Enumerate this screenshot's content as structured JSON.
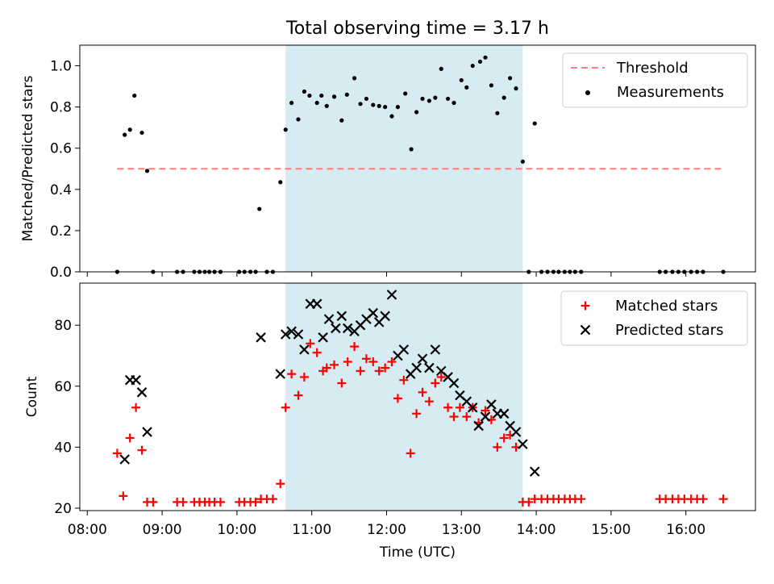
{
  "title": "Total observing time = 3.17 h",
  "colors": {
    "threshold": "#ff7f7f",
    "measurement": "#000000",
    "matched": "#ff0000",
    "predicted": "#000000",
    "shade": "#add8e6"
  },
  "chart_data": [
    {
      "type": "scatter",
      "ylabel": "Matched/Predicted stars",
      "ylim": [
        0,
        1.1
      ],
      "yticks": [
        0.0,
        0.2,
        0.4,
        0.6,
        0.8,
        1.0
      ],
      "ytick_labels": [
        "0.0",
        "0.2",
        "0.4",
        "0.6",
        "0.8",
        "1.0"
      ],
      "xlim_hours": [
        7.9,
        16.93
      ],
      "shaded_span_hours": [
        10.65,
        13.82
      ],
      "legend": {
        "position": "top-right",
        "entries": [
          "Threshold",
          "Measurements"
        ]
      },
      "threshold": {
        "name": "Threshold",
        "y": 0.5,
        "x_range_hours": [
          8.4,
          16.5
        ]
      },
      "series": [
        {
          "name": "Measurements",
          "x": [
            8.4,
            8.5,
            8.57,
            8.63,
            8.73,
            8.8,
            8.88,
            9.2,
            9.28,
            9.43,
            9.5,
            9.57,
            9.63,
            9.7,
            9.78,
            10.03,
            10.1,
            10.18,
            10.25,
            10.3,
            10.4,
            10.48,
            10.58,
            10.65,
            10.73,
            10.82,
            10.9,
            10.97,
            11.07,
            11.13,
            11.2,
            11.3,
            11.4,
            11.47,
            11.57,
            11.65,
            11.73,
            11.82,
            11.9,
            11.98,
            12.07,
            12.15,
            12.25,
            12.33,
            12.4,
            12.48,
            12.57,
            12.65,
            12.73,
            12.82,
            12.9,
            13.0,
            13.07,
            13.15,
            13.25,
            13.32,
            13.4,
            13.48,
            13.57,
            13.65,
            13.73,
            13.82,
            13.9,
            13.98,
            14.07,
            14.15,
            14.23,
            14.3,
            14.38,
            14.45,
            14.52,
            14.6,
            15.65,
            15.73,
            15.82,
            15.9,
            15.98,
            16.07,
            16.15,
            16.23,
            16.5
          ],
          "values": [
            0.0,
            0.665,
            0.69,
            0.855,
            0.675,
            0.49,
            0.0,
            0.0,
            0.0,
            0.0,
            0.0,
            0.0,
            0.0,
            0.0,
            0.0,
            0.0,
            0.0,
            0.0,
            0.0,
            0.305,
            0.0,
            0.0,
            0.435,
            0.69,
            0.82,
            0.74,
            0.875,
            0.855,
            0.82,
            0.855,
            0.805,
            0.85,
            0.735,
            0.86,
            0.94,
            0.815,
            0.84,
            0.81,
            0.805,
            0.8,
            0.755,
            0.8,
            0.865,
            0.595,
            0.775,
            0.84,
            0.83,
            0.845,
            0.985,
            0.84,
            0.82,
            0.93,
            0.895,
            1.0,
            1.02,
            1.04,
            0.905,
            0.77,
            0.845,
            0.94,
            0.89,
            0.535,
            0.0,
            0.72,
            0.0,
            0.0,
            0.0,
            0.0,
            0.0,
            0.0,
            0.0,
            0.0,
            0.0,
            0.0,
            0.0,
            0.0,
            0.0,
            0.0,
            0.0,
            0.0,
            0.0
          ]
        }
      ]
    },
    {
      "type": "scatter",
      "ylabel": "Count",
      "xlabel": "Time (UTC)",
      "ylim": [
        19.2,
        93.8
      ],
      "yticks": [
        20,
        40,
        60,
        80
      ],
      "ytick_labels": [
        "20",
        "40",
        "60",
        "80"
      ],
      "xlim_hours": [
        7.9,
        16.93
      ],
      "xticks_hours": [
        8,
        9,
        10,
        11,
        12,
        13,
        14,
        15,
        16
      ],
      "xtick_labels": [
        "08:00",
        "09:00",
        "10:00",
        "11:00",
        "12:00",
        "13:00",
        "14:00",
        "15:00",
        "16:00"
      ],
      "shaded_span_hours": [
        10.65,
        13.82
      ],
      "legend": {
        "position": "top-right",
        "entries": [
          "Matched stars",
          "Predicted stars"
        ]
      },
      "series": [
        {
          "name": "Matched stars",
          "x": [
            8.4,
            8.48,
            8.57,
            8.65,
            8.73,
            8.8,
            8.88,
            9.2,
            9.28,
            9.43,
            9.5,
            9.57,
            9.63,
            9.7,
            9.78,
            10.03,
            10.1,
            10.18,
            10.25,
            10.32,
            10.4,
            10.48,
            10.58,
            10.65,
            10.73,
            10.82,
            10.9,
            10.98,
            11.07,
            11.15,
            11.2,
            11.3,
            11.4,
            11.48,
            11.57,
            11.65,
            11.73,
            11.82,
            11.9,
            11.98,
            12.07,
            12.15,
            12.23,
            12.32,
            12.4,
            12.48,
            12.57,
            12.65,
            12.73,
            12.82,
            12.9,
            12.98,
            13.07,
            13.15,
            13.23,
            13.32,
            13.4,
            13.48,
            13.57,
            13.65,
            13.73,
            13.82,
            13.9,
            13.98,
            14.07,
            14.15,
            14.23,
            14.3,
            14.38,
            14.45,
            14.52,
            14.6,
            15.65,
            15.73,
            15.82,
            15.9,
            15.98,
            16.07,
            16.15,
            16.23,
            16.5
          ],
          "values": [
            38,
            24,
            43,
            53,
            39,
            22,
            22,
            22,
            22,
            22,
            22,
            22,
            22,
            22,
            22,
            22,
            22,
            22,
            22,
            23,
            23,
            23,
            28,
            53,
            64,
            57,
            63,
            74,
            71,
            65,
            66,
            67,
            61,
            68,
            73,
            65,
            69,
            68,
            65,
            66,
            68,
            56,
            62,
            38,
            51,
            58,
            55,
            61,
            63,
            53,
            50,
            53,
            50,
            53,
            48,
            52,
            49,
            40,
            43,
            44,
            40,
            22,
            22,
            23,
            23,
            23,
            23,
            23,
            23,
            23,
            23,
            23,
            23,
            23,
            23,
            23,
            23,
            23,
            23,
            23,
            23
          ]
        },
        {
          "name": "Predicted stars",
          "x": [
            8.5,
            8.57,
            8.65,
            8.73,
            8.8,
            10.32,
            10.58,
            10.65,
            10.73,
            10.82,
            10.9,
            10.98,
            11.07,
            11.15,
            11.23,
            11.32,
            11.4,
            11.48,
            11.57,
            11.65,
            11.73,
            11.82,
            11.9,
            11.98,
            12.07,
            12.15,
            12.23,
            12.32,
            12.4,
            12.48,
            12.57,
            12.65,
            12.73,
            12.82,
            12.9,
            12.98,
            13.07,
            13.15,
            13.23,
            13.32,
            13.4,
            13.48,
            13.57,
            13.65,
            13.73,
            13.82,
            13.98
          ],
          "values": [
            36,
            62,
            62,
            58,
            45,
            76,
            64,
            77,
            78,
            77,
            72,
            87,
            87,
            76,
            82,
            79,
            83,
            79,
            78,
            80,
            82,
            84,
            81,
            83,
            90,
            70,
            72,
            64,
            66,
            69,
            66,
            72,
            65,
            63,
            61,
            57,
            55,
            53,
            47,
            50,
            54,
            51,
            51,
            47,
            45,
            41,
            32
          ]
        }
      ]
    }
  ]
}
